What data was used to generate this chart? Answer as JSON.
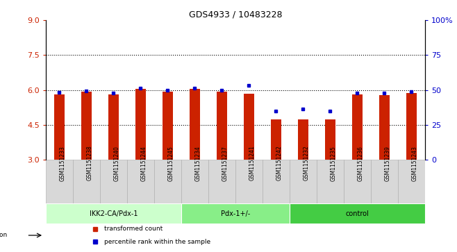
{
  "title": "GDS4933 / 10483228",
  "samples": [
    "GSM1151233",
    "GSM1151238",
    "GSM1151240",
    "GSM1151244",
    "GSM1151245",
    "GSM1151234",
    "GSM1151237",
    "GSM1151241",
    "GSM1151242",
    "GSM1151232",
    "GSM1151235",
    "GSM1151236",
    "GSM1151239",
    "GSM1151243"
  ],
  "red_bar_heights": [
    5.82,
    5.92,
    5.8,
    6.05,
    5.93,
    6.05,
    5.93,
    5.85,
    4.72,
    4.74,
    4.72,
    5.82,
    5.78,
    5.88
  ],
  "blue_dot_values": [
    5.9,
    5.97,
    5.86,
    6.08,
    5.98,
    6.08,
    5.99,
    6.2,
    5.08,
    5.18,
    5.08,
    5.88,
    5.86,
    5.94
  ],
  "groups": [
    {
      "label": "IKK2-CA/Pdx-1",
      "start": 0,
      "end": 5,
      "color": "#ccffcc"
    },
    {
      "label": "Pdx-1+/-",
      "start": 5,
      "end": 9,
      "color": "#88ee88"
    },
    {
      "label": "control",
      "start": 9,
      "end": 14,
      "color": "#44cc44"
    }
  ],
  "ylim_left": [
    3,
    9
  ],
  "ylim_right": [
    0,
    100
  ],
  "yticks_left": [
    3,
    4.5,
    6,
    7.5,
    9
  ],
  "yticks_right": [
    0,
    25,
    50,
    75,
    100
  ],
  "bar_color": "#cc2200",
  "dot_color": "#0000cc",
  "bar_bottom": 3.0,
  "grid_lines": [
    4.5,
    6.0,
    7.5
  ]
}
